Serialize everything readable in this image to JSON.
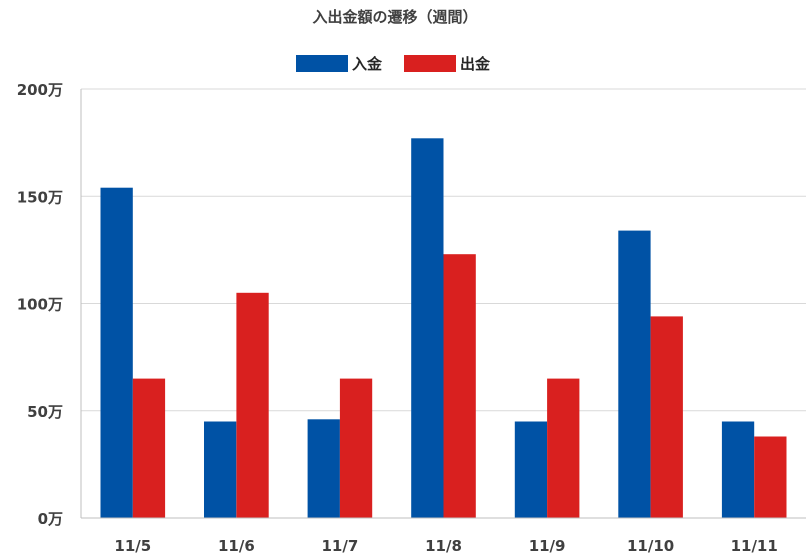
{
  "chart_data": {
    "type": "bar",
    "title": "入出金額の遷移（週間）",
    "categories": [
      "11/5",
      "11/6",
      "11/7",
      "11/8",
      "11/9",
      "11/10",
      "11/11"
    ],
    "series": [
      {
        "name": "入金",
        "color": "#0052a5",
        "values": [
          154,
          45,
          46,
          177,
          45,
          134,
          45
        ]
      },
      {
        "name": "出金",
        "color": "#d9201f",
        "values": [
          65,
          105,
          65,
          123,
          65,
          94,
          38
        ]
      }
    ],
    "ylim": [
      0,
      200
    ],
    "y_ticks": [
      0,
      50,
      100,
      150,
      200
    ],
    "y_tick_labels": [
      "0万",
      "50万",
      "100万",
      "150万",
      "200万"
    ],
    "xlabel": "",
    "ylabel": "",
    "grid": "horizontal",
    "legend_position": "top-center"
  }
}
